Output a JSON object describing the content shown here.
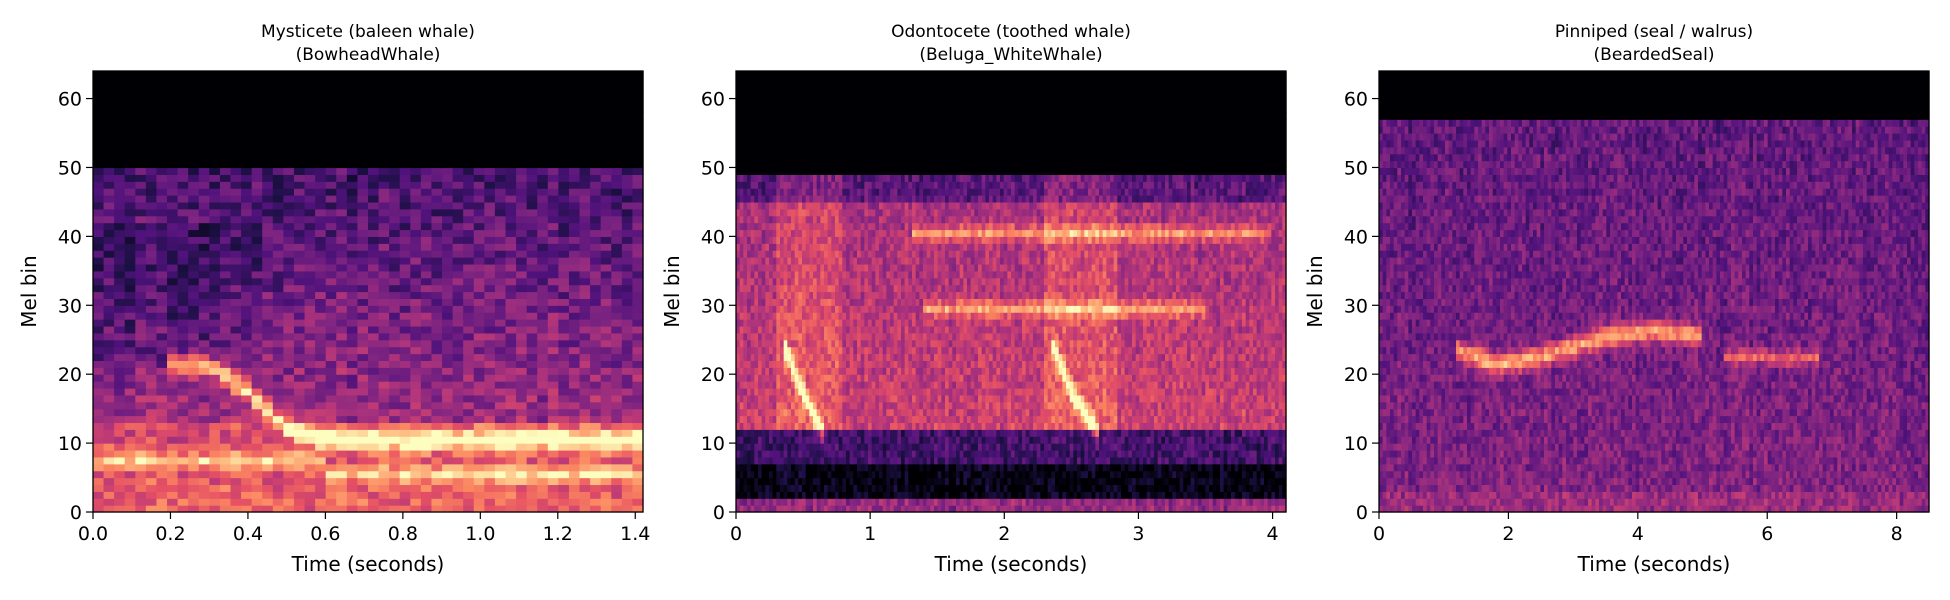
{
  "chart_data": [
    {
      "type": "heatmap",
      "title_line1": "Mysticete (baleen whale)",
      "title_line2": "(BowheadWhale)",
      "xlabel": "Time (seconds)",
      "ylabel": "Mel bin",
      "xlim": [
        0,
        1.42
      ],
      "ylim": [
        0,
        64
      ],
      "xticks": [
        "0.0",
        "0.2",
        "0.4",
        "0.6",
        "0.8",
        "1.0",
        "1.2",
        "1.4"
      ],
      "xtick_values": [
        0,
        0.2,
        0.4,
        0.6,
        0.8,
        1.0,
        1.2,
        1.4
      ],
      "yticks": [
        "0",
        "10",
        "20",
        "30",
        "40",
        "50",
        "60"
      ],
      "ytick_values": [
        0,
        10,
        20,
        30,
        40,
        50,
        60
      ],
      "colormap": "magma",
      "empty_above_bin": 50,
      "features": [
        {
          "kind": "call",
          "points": [
            [
              0.2,
              21
            ],
            [
              0.3,
              21
            ],
            [
              0.4,
              17
            ],
            [
              0.5,
              12
            ],
            [
              0.6,
              10
            ],
            [
              0.8,
              10
            ],
            [
              1.0,
              10
            ],
            [
              1.42,
              10
            ]
          ]
        },
        {
          "kind": "band",
          "bin": 7,
          "x0": 0.0,
          "x1": 0.6
        },
        {
          "kind": "band",
          "bin": 5,
          "x0": 0.6,
          "x1": 1.42
        }
      ]
    },
    {
      "type": "heatmap",
      "title_line1": "Odontocete (toothed whale)",
      "title_line2": "(Beluga_WhiteWhale)",
      "xlabel": "Time (seconds)",
      "ylabel": "Mel bin",
      "xlim": [
        0,
        4.1
      ],
      "ylim": [
        0,
        64
      ],
      "xticks": [
        "0",
        "1",
        "2",
        "3",
        "4"
      ],
      "xtick_values": [
        0,
        1,
        2,
        3,
        4
      ],
      "yticks": [
        "0",
        "10",
        "20",
        "30",
        "40",
        "50",
        "60"
      ],
      "ytick_values": [
        0,
        10,
        20,
        30,
        40,
        50,
        60
      ],
      "colormap": "magma",
      "empty_above_bin": 49,
      "features": [
        {
          "kind": "call",
          "points": [
            [
              0.35,
              24
            ],
            [
              0.5,
              17
            ],
            [
              0.65,
              11
            ]
          ]
        },
        {
          "kind": "call",
          "points": [
            [
              2.35,
              24
            ],
            [
              2.5,
              17
            ],
            [
              2.7,
              11
            ]
          ]
        },
        {
          "kind": "band",
          "bin": 40,
          "x0": 1.3,
          "x1": 4.0
        },
        {
          "kind": "band",
          "bin": 29,
          "x0": 1.4,
          "x1": 3.5
        }
      ]
    },
    {
      "type": "heatmap",
      "title_line1": "Pinniped (seal / walrus)",
      "title_line2": "(BeardedSeal)",
      "xlabel": "Time (seconds)",
      "ylabel": "Mel bin",
      "xlim": [
        0,
        8.5
      ],
      "ylim": [
        0,
        64
      ],
      "xticks": [
        "0",
        "2",
        "4",
        "6",
        "8"
      ],
      "xtick_values": [
        0,
        2,
        4,
        6,
        8
      ],
      "yticks": [
        "0",
        "10",
        "20",
        "30",
        "40",
        "50",
        "60"
      ],
      "ytick_values": [
        0,
        10,
        20,
        30,
        40,
        50,
        60
      ],
      "colormap": "magma",
      "empty_above_bin": 57,
      "features": [
        {
          "kind": "call",
          "points": [
            [
              1.2,
              23
            ],
            [
              1.8,
              21
            ],
            [
              2.5,
              22
            ],
            [
              3.5,
              25
            ],
            [
              4.3,
              26
            ],
            [
              5.0,
              25
            ]
          ]
        },
        {
          "kind": "band",
          "bin": 22,
          "x0": 5.3,
          "x1": 6.8
        }
      ]
    }
  ]
}
